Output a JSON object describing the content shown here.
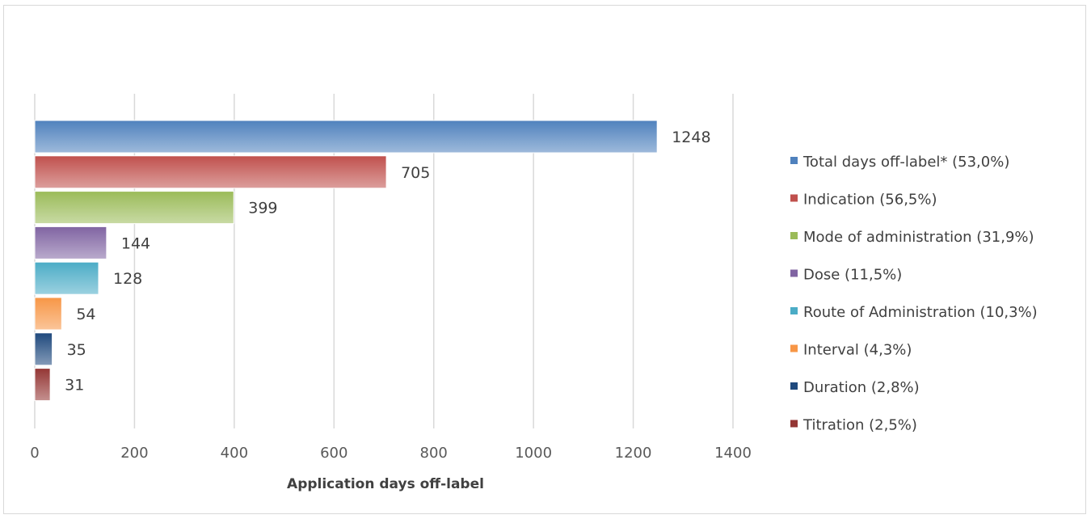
{
  "chart_data": {
    "type": "bar",
    "orientation": "horizontal",
    "categories": [
      "Total days off-label* (53,0%)",
      "Indication (56,5%)",
      "Mode of administration (31,9%)",
      "Dose (11,5%)",
      "Route of Administration (10,3%)",
      "Interval (4,3%)",
      "Duration (2,8%)",
      "Titration (2,5%)"
    ],
    "values": [
      1248,
      705,
      399,
      144,
      128,
      54,
      35,
      31
    ],
    "colors": [
      "#4f81bd",
      "#c0504d",
      "#9bbb59",
      "#8064a2",
      "#4bacc6",
      "#f79646",
      "#1f497d",
      "#943634"
    ],
    "title": "",
    "xlabel": "Application days off-label",
    "ylabel": "",
    "xlim": [
      0,
      1400
    ],
    "xticks": [
      "0",
      "200",
      "400",
      "600",
      "800",
      "1000",
      "1200",
      "1400"
    ],
    "grid": "vertical",
    "legend": "right"
  }
}
